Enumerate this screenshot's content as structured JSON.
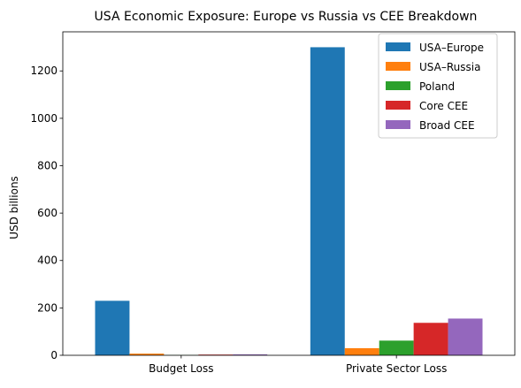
{
  "chart_data": {
    "type": "bar",
    "title": "USA Economic Exposure: Europe vs Russia vs CEE Breakdown",
    "xlabel": "",
    "ylabel": "USD billions",
    "categories": [
      "Budget Loss",
      "Private Sector Loss"
    ],
    "ylim": [
      0,
      1365
    ],
    "yticks": [
      0,
      200,
      400,
      600,
      800,
      1000,
      1200
    ],
    "grid": false,
    "legend_position": "top-right",
    "series": [
      {
        "name": "USA–Europe",
        "color": "#1f77b4",
        "values": [
          230,
          1300
        ]
      },
      {
        "name": "USA–Russia",
        "color": "#ff7f0e",
        "values": [
          7,
          30
        ]
      },
      {
        "name": "Poland",
        "color": "#2ca02c",
        "values": [
          1,
          62
        ]
      },
      {
        "name": "Core CEE",
        "color": "#d62728",
        "values": [
          3,
          137
        ]
      },
      {
        "name": "Broad CEE",
        "color": "#9467bd",
        "values": [
          4,
          155
        ]
      }
    ]
  }
}
